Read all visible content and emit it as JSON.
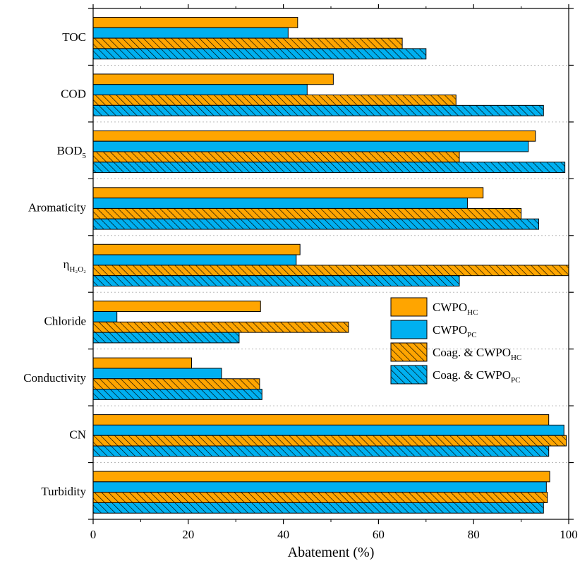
{
  "chart_data": {
    "type": "bar",
    "orientation": "horizontal",
    "xlabel": "Abatement (%)",
    "ylabel": "",
    "xlim": [
      0,
      100
    ],
    "xticks": [
      0,
      20,
      40,
      60,
      80,
      100
    ],
    "grid": "horizontal dotted separators between categories",
    "legend_position": "right-middle",
    "categories": [
      {
        "base": "TOC",
        "sub": ""
      },
      {
        "base": "COD",
        "sub": ""
      },
      {
        "base": "BOD",
        "sub": "5"
      },
      {
        "base": "Aromaticity",
        "sub": ""
      },
      {
        "base": "η",
        "sub": "H₂O₂"
      },
      {
        "base": "Chloride",
        "sub": ""
      },
      {
        "base": "Conductivity",
        "sub": ""
      },
      {
        "base": "CN",
        "sub": ""
      },
      {
        "base": "Turbidity",
        "sub": ""
      }
    ],
    "series": [
      {
        "name": "CWPO",
        "name_sub": "HC",
        "color": "#FFA500",
        "hatched": false,
        "values": [
          43,
          50.5,
          93,
          82,
          43.5,
          35.2,
          20.7,
          95.8,
          96
        ]
      },
      {
        "name": "CWPO",
        "name_sub": "PC",
        "color": "#00B0F0",
        "hatched": false,
        "values": [
          41,
          45,
          91.5,
          78.7,
          42.7,
          5,
          27,
          99,
          95.3
        ]
      },
      {
        "name": "Coag. & CWPO",
        "name_sub": "HC",
        "color": "#FFA500",
        "hatched": true,
        "values": [
          65,
          76.3,
          77,
          90,
          100,
          53.7,
          35,
          99.5,
          95.5
        ]
      },
      {
        "name": "Coag. & CWPO",
        "name_sub": "PC",
        "color": "#00B0F0",
        "hatched": true,
        "values": [
          70,
          94.7,
          99.2,
          93.7,
          77,
          30.7,
          35.5,
          95.8,
          94.7
        ]
      }
    ]
  }
}
